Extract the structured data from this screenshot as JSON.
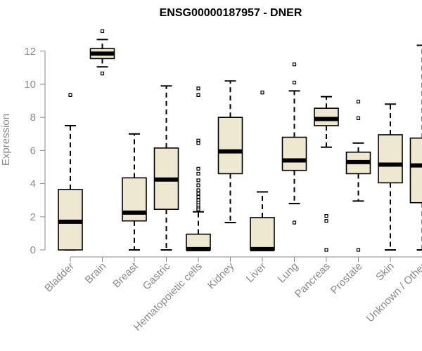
{
  "chart_data": {
    "type": "boxplot",
    "title": "ENSG00000187957 - DNER",
    "xlabel": "",
    "ylabel": "Expression",
    "ylim": [
      0,
      13.2
    ],
    "yticks": [
      0,
      2,
      4,
      6,
      8,
      10,
      12
    ],
    "grid": false,
    "legend": "none",
    "box_fill": "#efe8d0",
    "box_stroke": "#000000",
    "axis_color": "#8a8a8a",
    "categories": [
      "Bladder",
      "Brain",
      "Breast",
      "Gastric",
      "Hematopoietic cells",
      "Kidney",
      "Liver",
      "Lung",
      "Pancreas",
      "Prostate",
      "Skin",
      "Unknown / Other"
    ],
    "boxes": [
      {
        "category": "Bladder",
        "whisker_low": 0,
        "q1": 0,
        "median": 1.7,
        "q3": 3.65,
        "whisker_high": 7.5,
        "outliers": [
          9.35
        ]
      },
      {
        "category": "Brain",
        "whisker_low": 11.05,
        "q1": 11.55,
        "median": 11.85,
        "q3": 12.15,
        "whisker_high": 12.7,
        "outliers": [
          13.2,
          10.65
        ]
      },
      {
        "category": "Breast",
        "whisker_low": 0,
        "q1": 1.75,
        "median": 2.25,
        "q3": 4.35,
        "whisker_high": 7.0,
        "outliers": []
      },
      {
        "category": "Gastric",
        "whisker_low": 0,
        "q1": 2.45,
        "median": 4.25,
        "q3": 6.15,
        "whisker_high": 9.9,
        "outliers": []
      },
      {
        "category": "Hematopoietic cells",
        "whisker_low": 0,
        "q1": 0,
        "median": 0.05,
        "q3": 0.95,
        "whisker_high": 2.3,
        "outliers": [
          9.75,
          9.35,
          6.6,
          6.45,
          4.9,
          4.6,
          4.2,
          3.9,
          3.6,
          3.4,
          3.2,
          3.0,
          2.85,
          2.7,
          2.55,
          2.45
        ]
      },
      {
        "category": "Kidney",
        "whisker_low": 1.65,
        "q1": 4.6,
        "median": 5.95,
        "q3": 8.0,
        "whisker_high": 10.2,
        "outliers": []
      },
      {
        "category": "Liver",
        "whisker_low": 0,
        "q1": 0,
        "median": 0.05,
        "q3": 1.95,
        "whisker_high": 3.5,
        "outliers": [
          9.5
        ]
      },
      {
        "category": "Lung",
        "whisker_low": 2.8,
        "q1": 4.8,
        "median": 5.4,
        "q3": 6.8,
        "whisker_high": 9.6,
        "outliers": [
          11.2,
          10.1,
          1.65
        ]
      },
      {
        "category": "Pancreas",
        "whisker_low": 6.2,
        "q1": 7.5,
        "median": 7.9,
        "q3": 8.55,
        "whisker_high": 9.25,
        "outliers": [
          2.05,
          1.75,
          0
        ]
      },
      {
        "category": "Prostate",
        "whisker_low": 2.95,
        "q1": 4.6,
        "median": 5.3,
        "q3": 5.9,
        "whisker_high": 6.45,
        "outliers": [
          8.95,
          7.95,
          0
        ]
      },
      {
        "category": "Skin",
        "whisker_low": 0,
        "q1": 4.05,
        "median": 5.15,
        "q3": 6.95,
        "whisker_high": 8.8,
        "outliers": []
      },
      {
        "category": "Unknown / Other",
        "whisker_low": 0,
        "q1": 2.85,
        "median": 5.1,
        "q3": 6.75,
        "whisker_high": 12.35,
        "outliers": []
      }
    ]
  }
}
